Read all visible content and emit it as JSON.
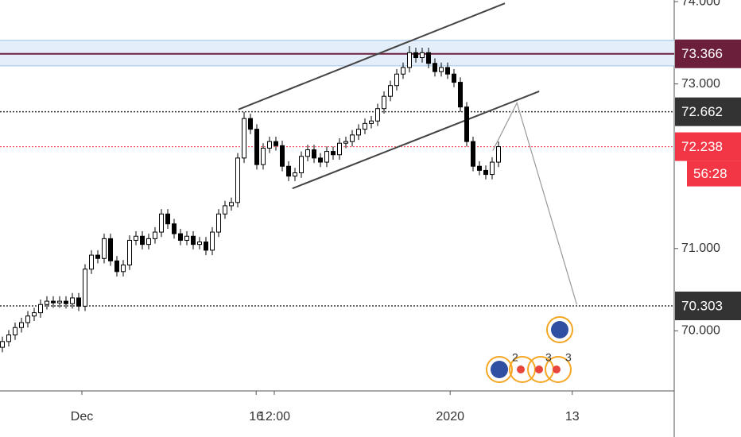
{
  "chart_data": {
    "type": "candlestick",
    "xlim": [
      -0.375,
      105.625
    ],
    "ylim": [
      69.27,
      74.02
    ],
    "xticks": [
      {
        "value": 12.5,
        "label": "Dec"
      },
      {
        "value": 39.9,
        "label": "16"
      },
      {
        "value": 42.75,
        "label": "12:00"
      },
      {
        "value": 70.4,
        "label": "2020"
      },
      {
        "value": 89.6,
        "label": "13"
      }
    ],
    "yticks": [
      {
        "value": 70,
        "label": "70.000"
      },
      {
        "value": 71,
        "label": "71.000"
      },
      {
        "value": 73,
        "label": "73.000"
      },
      {
        "value": 74,
        "label": "74.000"
      }
    ],
    "x": [
      0,
      1,
      2,
      3,
      4,
      5,
      6,
      7,
      8,
      9,
      10,
      11,
      12,
      13,
      14,
      15,
      16,
      17,
      18,
      19,
      20,
      21,
      22,
      23,
      24,
      25,
      26,
      27,
      28,
      29,
      30,
      31,
      32,
      33,
      34,
      35,
      36,
      37,
      38,
      39,
      40,
      41,
      42,
      43,
      44,
      45,
      46,
      47,
      48,
      49,
      50,
      51,
      52,
      53,
      54,
      55,
      56,
      57,
      58,
      59,
      60,
      61,
      62,
      63,
      64,
      65,
      66,
      67,
      68,
      69,
      70,
      71,
      72,
      73,
      74,
      75,
      76,
      77,
      78
    ],
    "open": [
      69.8,
      69.87,
      69.95,
      70.04,
      70.1,
      70.18,
      70.22,
      70.32,
      70.36,
      70.34,
      70.36,
      70.33,
      70.4,
      70.3,
      70.75,
      70.92,
      70.88,
      71.12,
      70.85,
      70.72,
      70.8,
      71.1,
      71.15,
      71.05,
      71.12,
      71.2,
      71.42,
      71.3,
      71.18,
      71.1,
      71.15,
      71.05,
      71.08,
      70.98,
      71.2,
      71.42,
      71.52,
      71.56,
      72.1,
      72.58,
      72.45,
      72.02,
      72.22,
      72.3,
      72.25,
      72.0,
      71.88,
      71.92,
      72.12,
      72.2,
      72.1,
      72.05,
      72.18,
      72.14,
      72.28,
      72.3,
      72.38,
      72.45,
      72.52,
      72.55,
      72.7,
      72.85,
      72.98,
      73.12,
      73.2,
      73.38,
      73.32,
      73.38,
      73.25,
      73.15,
      73.2,
      73.12,
      73.02,
      72.72,
      72.3,
      72.0,
      71.95,
      71.9,
      72.05
    ],
    "high": [
      69.93,
      70.01,
      70.1,
      70.16,
      70.24,
      70.28,
      70.38,
      70.42,
      70.42,
      70.42,
      70.42,
      70.46,
      70.46,
      70.81,
      70.98,
      70.98,
      71.18,
      71.18,
      70.91,
      70.86,
      71.16,
      71.21,
      71.21,
      71.18,
      71.26,
      71.48,
      71.48,
      71.36,
      71.24,
      71.21,
      71.21,
      71.14,
      71.14,
      71.26,
      71.48,
      71.58,
      71.62,
      72.16,
      72.66,
      72.64,
      72.51,
      72.28,
      72.36,
      72.36,
      72.31,
      72.06,
      71.98,
      72.18,
      72.26,
      72.26,
      72.16,
      72.24,
      72.24,
      72.34,
      72.36,
      72.44,
      72.51,
      72.58,
      72.61,
      72.76,
      72.91,
      73.04,
      73.18,
      73.26,
      73.46,
      73.44,
      73.44,
      73.44,
      73.31,
      73.26,
      73.26,
      73.18,
      73.08,
      72.78,
      72.36,
      72.06,
      72.01,
      72.11,
      72.3
    ],
    "low": [
      69.74,
      69.81,
      69.89,
      69.98,
      70.04,
      70.12,
      70.16,
      70.26,
      70.28,
      70.28,
      70.27,
      70.27,
      70.24,
      70.24,
      70.69,
      70.82,
      70.82,
      70.79,
      70.66,
      70.66,
      70.74,
      71.04,
      70.99,
      70.99,
      71.06,
      71.14,
      71.24,
      71.12,
      71.04,
      71.04,
      70.99,
      70.99,
      70.92,
      70.92,
      71.14,
      71.36,
      71.46,
      71.5,
      72.04,
      72.39,
      71.96,
      71.96,
      72.16,
      72.19,
      71.94,
      71.82,
      71.82,
      71.86,
      72.06,
      72.04,
      71.99,
      71.99,
      72.08,
      72.08,
      72.22,
      72.24,
      72.32,
      72.39,
      72.46,
      72.49,
      72.64,
      72.79,
      72.92,
      73.06,
      73.14,
      73.26,
      73.26,
      73.19,
      73.09,
      73.09,
      73.06,
      72.96,
      72.66,
      72.24,
      71.94,
      71.89,
      71.84,
      71.84,
      71.99
    ],
    "close": [
      69.87,
      69.95,
      70.04,
      70.1,
      70.18,
      70.22,
      70.32,
      70.36,
      70.34,
      70.36,
      70.33,
      70.4,
      70.3,
      70.75,
      70.92,
      70.88,
      71.12,
      70.85,
      70.72,
      70.8,
      71.1,
      71.15,
      71.05,
      71.12,
      71.2,
      71.42,
      71.3,
      71.18,
      71.1,
      71.15,
      71.05,
      71.08,
      70.98,
      71.2,
      71.42,
      71.52,
      71.56,
      72.1,
      72.58,
      72.45,
      72.02,
      72.22,
      72.3,
      72.25,
      72.0,
      71.88,
      71.92,
      72.12,
      72.2,
      72.1,
      72.05,
      72.18,
      72.14,
      72.28,
      72.3,
      72.38,
      72.45,
      72.52,
      72.55,
      72.7,
      72.85,
      72.98,
      73.12,
      73.2,
      73.38,
      73.32,
      73.38,
      73.25,
      73.15,
      73.2,
      73.12,
      73.02,
      72.72,
      72.3,
      72.0,
      71.95,
      71.9,
      72.05,
      72.238
    ],
    "zone": {
      "from": 73.22,
      "to": 73.53,
      "color": "#e3eefa",
      "edge": "#9ec5ea"
    },
    "levels": [
      {
        "value": 73.366,
        "color": "#6b1f3a",
        "style": "solid"
      },
      {
        "value": 72.662,
        "color": "#333333",
        "style": "dotted"
      },
      {
        "value": 72.238,
        "color": "#f23645",
        "style": "dotted"
      },
      {
        "value": 70.303,
        "color": "#333333",
        "style": "dotted"
      }
    ],
    "countdown": "56:28",
    "drawings": [
      {
        "x": [
          37.1,
          79.0
        ],
        "y": [
          72.69,
          73.98
        ],
        "color": "#444444"
      },
      {
        "x": [
          45.6,
          84.4
        ],
        "y": [
          71.73,
          72.91
        ],
        "color": "#444444"
      },
      {
        "x": [
          77.1,
          80.9,
          90.3
        ],
        "y": [
          72.19,
          72.77,
          70.32
        ],
        "color": "#999999"
      }
    ],
    "events": [
      2,
      3,
      3
    ]
  }
}
